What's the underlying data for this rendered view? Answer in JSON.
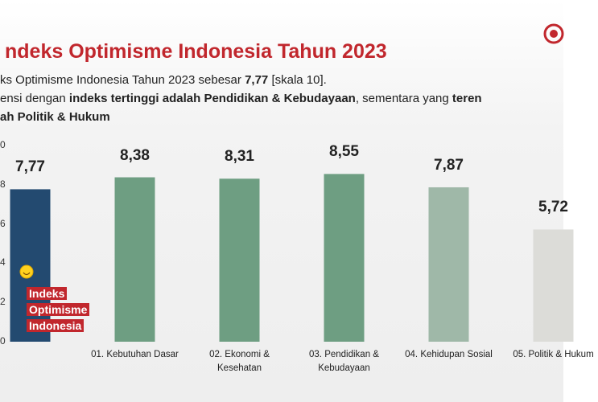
{
  "chart_data": {
    "type": "bar",
    "title": "ndeks Optimisme Indonesia Tahun 2023",
    "subtitle": [
      [
        {
          "text": "ks Optimisme Indonesia Tahun 2023 sebesar ",
          "bold": false
        },
        {
          "text": "7,77",
          "bold": true
        },
        {
          "text": " [skala 10].",
          "bold": false
        }
      ],
      [
        {
          "text": "ensi dengan ",
          "bold": false
        },
        {
          "text": "indeks tertinggi adalah Pendidikan & Kebudayaan",
          "bold": true
        },
        {
          "text": ", sementara yang ",
          "bold": false
        },
        {
          "text": "teren",
          "bold": true
        }
      ],
      [
        {
          "text": "ah Politik & Hukum",
          "bold": true
        }
      ]
    ],
    "categories": [
      "Indeks Optimisme Indonesia",
      "01. Kebutuhan Dasar",
      "02. Ekonomi & Kesehatan",
      "03. Pendidikan & Kebudayaan",
      "04. Kehidupan Sosial",
      "05. Politik & Hukum"
    ],
    "values": [
      7.77,
      8.38,
      8.31,
      8.55,
      7.87,
      5.72
    ],
    "value_labels": [
      "7,77",
      "8,38",
      "8,31",
      "8,55",
      "7,87",
      "5,72"
    ],
    "colors": [
      "#234a70",
      "#6e9e82",
      "#6e9e82",
      "#6e9e82",
      "#9fb8a8",
      "#dcdcd8"
    ],
    "ylim": [
      0,
      10
    ],
    "yticks": [
      0,
      2,
      4,
      6,
      8,
      {
        "value": 10,
        "label": "0"
      }
    ]
  }
}
